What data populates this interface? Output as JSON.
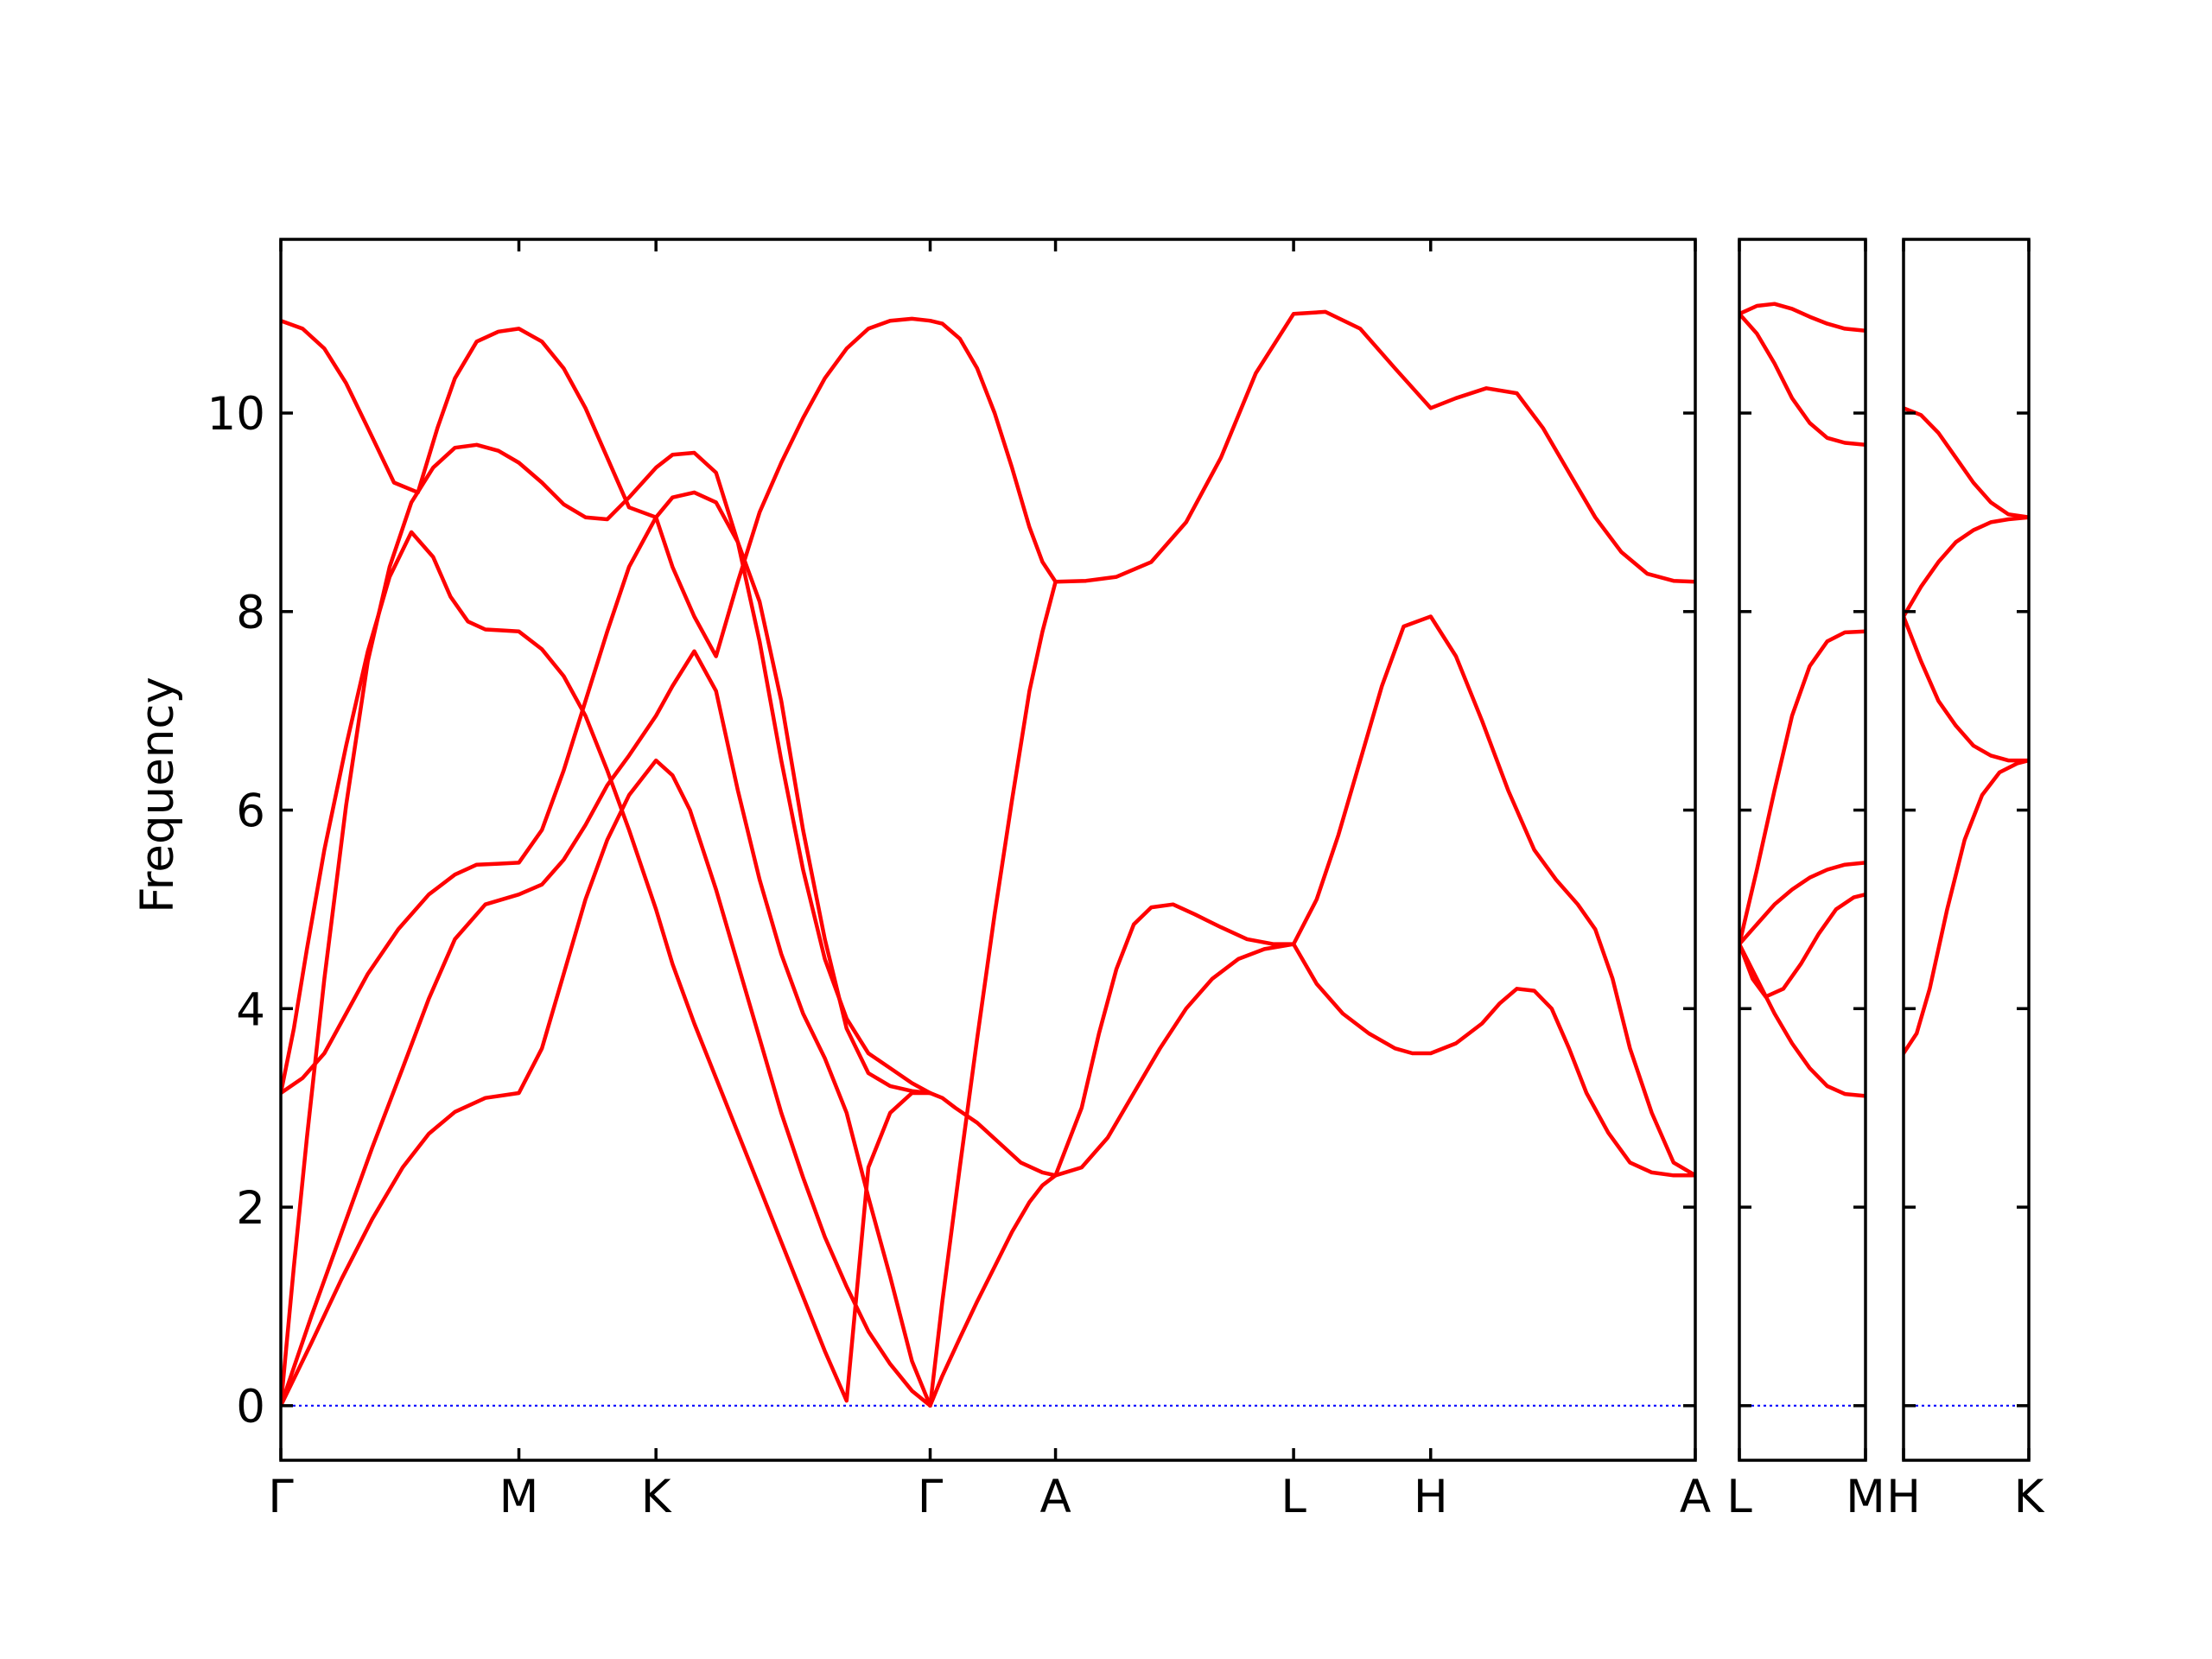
{
  "colors": {
    "band": "#ff0000",
    "zero_line": "#0000ff",
    "axes": "#000000",
    "background": "#ffffff"
  },
  "chart_data": {
    "type": "line",
    "title": "",
    "ylabel": "Frequency",
    "xlabel": "",
    "ylim": [
      -0.55,
      11.75
    ],
    "yticks": [
      0,
      2,
      4,
      6,
      8,
      10
    ],
    "ytick_labels": [
      "0",
      "2",
      "4",
      "6",
      "8",
      "10"
    ],
    "grid": false,
    "legend": "none",
    "panels": [
      {
        "name": "panel-1",
        "xlim": [
          0,
          3.25
        ],
        "ticks": [
          {
            "x": 0.0,
            "label": "Γ"
          },
          {
            "x": 0.547,
            "label": "M"
          },
          {
            "x": 0.862,
            "label": "K"
          },
          {
            "x": 1.492,
            "label": "Γ"
          },
          {
            "x": 1.78,
            "label": "A"
          },
          {
            "x": 2.327,
            "label": "L"
          },
          {
            "x": 2.642,
            "label": "H"
          },
          {
            "x": 3.25,
            "label": "A"
          }
        ],
        "bands": [
          {
            "x": [
              0,
              0.07,
              0.14,
              0.21,
              0.28,
              0.34,
              0.4,
              0.47,
              0.547,
              0.6,
              0.65,
              0.7,
              0.75,
              0.8,
              0.862,
              0.9,
              0.94,
              1.0,
              1.05,
              1.1,
              1.15,
              1.2,
              1.25,
              1.3,
              1.35,
              1.4,
              1.45,
              1.492
            ],
            "y": [
              0,
              0.63,
              1.28,
              1.88,
              2.4,
              2.74,
              2.96,
              3.1,
              3.15,
              3.6,
              4.35,
              5.1,
              5.7,
              6.15,
              6.5,
              6.35,
              6.0,
              5.2,
              4.45,
              3.7,
              2.95,
              2.3,
              1.7,
              1.2,
              0.75,
              0.42,
              0.15,
              0
            ]
          },
          {
            "x": [
              0,
              0.07,
              0.14,
              0.21,
              0.28,
              0.34,
              0.4,
              0.47,
              0.547,
              0.6,
              0.65,
              0.7,
              0.75,
              0.8,
              0.862,
              0.9,
              0.95,
              1.0,
              1.05,
              1.1,
              1.15,
              1.2,
              1.25,
              1.3,
              1.35,
              1.4,
              1.45,
              1.492
            ],
            "y": [
              0,
              0.9,
              1.75,
              2.6,
              3.4,
              4.1,
              4.7,
              5.05,
              5.15,
              5.25,
              5.5,
              5.85,
              6.25,
              6.55,
              6.95,
              7.25,
              7.6,
              7.2,
              6.2,
              5.3,
              4.55,
              3.95,
              3.5,
              2.95,
              2.1,
              1.3,
              0.45,
              0
            ]
          },
          {
            "x": [
              0,
              0.05,
              0.1,
              0.15,
              0.2,
              0.27,
              0.34,
              0.4,
              0.45,
              0.5,
              0.547,
              0.6,
              0.65,
              0.7,
              0.75,
              0.8,
              0.862,
              0.9,
              0.95,
              1.0,
              1.05,
              1.1,
              1.15,
              1.2,
              1.25,
              1.3,
              1.35,
              1.4,
              1.45,
              1.492
            ],
            "y": [
              3.15,
              3.3,
              3.55,
              3.95,
              4.35,
              4.8,
              5.15,
              5.35,
              5.45,
              5.46,
              5.47,
              5.8,
              6.4,
              7.1,
              7.8,
              8.45,
              8.95,
              9.15,
              9.2,
              9.1,
              8.7,
              8.1,
              7.1,
              5.8,
              4.7,
              3.8,
              3.35,
              3.22,
              3.17,
              3.15
            ]
          },
          {
            "x": [
              0,
              0.03,
              0.06,
              0.1,
              0.15,
              0.2,
              0.25,
              0.3,
              0.35,
              0.39,
              0.43,
              0.47,
              0.51,
              0.547,
              0.6,
              0.65,
              0.7,
              0.75,
              0.8,
              0.862,
              0.9,
              0.95,
              1.0,
              1.05,
              1.1,
              1.15,
              1.2,
              1.25,
              1.3,
              1.35,
              1.4,
              1.45,
              1.492
            ],
            "y": [
              3.15,
              3.8,
              4.6,
              5.6,
              6.65,
              7.6,
              8.35,
              8.8,
              8.55,
              8.15,
              7.9,
              7.82,
              7.81,
              7.8,
              7.62,
              7.35,
              6.95,
              6.4,
              5.8,
              5.0,
              4.45,
              3.85,
              3.3,
              2.75,
              2.2,
              1.65,
              1.1,
              0.55,
              0.05,
              2.4,
              2.95,
              3.15,
              3.15
            ]
          },
          {
            "x": [
              0,
              0.03,
              0.06,
              0.1,
              0.15,
              0.2,
              0.25,
              0.3,
              0.35,
              0.4,
              0.45,
              0.5,
              0.547,
              0.6,
              0.65,
              0.7,
              0.75,
              0.8,
              0.862,
              0.9,
              0.95,
              1.0,
              1.05,
              1.1,
              1.15,
              1.2,
              1.25,
              1.3,
              1.35,
              1.4,
              1.45,
              1.492
            ],
            "y": [
              0,
              1.4,
              2.7,
              4.3,
              6.05,
              7.5,
              8.45,
              9.1,
              9.45,
              9.65,
              9.68,
              9.62,
              9.5,
              9.3,
              9.08,
              8.95,
              8.93,
              9.15,
              9.45,
              9.58,
              9.6,
              9.4,
              8.7,
              7.7,
              6.5,
              5.4,
              4.5,
              3.9,
              3.55,
              3.4,
              3.25,
              3.15
            ]
          },
          {
            "x": [
              0,
              0.05,
              0.1,
              0.15,
              0.2,
              0.26,
              0.315,
              0.36,
              0.4,
              0.45,
              0.5,
              0.547,
              0.6,
              0.65,
              0.7,
              0.75,
              0.8,
              0.862,
              0.9,
              0.95,
              1.0,
              1.05,
              1.1,
              1.15,
              1.2,
              1.25,
              1.3,
              1.35,
              1.4,
              1.45,
              1.492
            ],
            "y": [
              10.93,
              10.85,
              10.65,
              10.3,
              9.85,
              9.3,
              9.2,
              9.85,
              10.35,
              10.72,
              10.82,
              10.85,
              10.72,
              10.45,
              10.05,
              9.55,
              9.05,
              8.95,
              8.45,
              7.95,
              7.55,
              8.3,
              9.0,
              9.5,
              9.95,
              10.35,
              10.65,
              10.85,
              10.93,
              10.95,
              10.93
            ]
          },
          {
            "x": [
              1.492,
              1.52,
              1.55,
              1.6,
              1.65,
              1.7,
              1.75,
              1.78
            ],
            "y": [
              3.15,
              3.1,
              3.0,
              2.85,
              2.65,
              2.45,
              2.35,
              2.32
            ]
          },
          {
            "x": [
              1.492,
              1.52,
              1.56,
              1.6,
              1.64,
              1.68,
              1.72,
              1.75,
              1.78
            ],
            "y": [
              0,
              0.3,
              0.68,
              1.05,
              1.4,
              1.75,
              2.05,
              2.22,
              2.32
            ]
          },
          {
            "x": [
              1.492,
              1.52,
              1.56,
              1.6,
              1.64,
              1.68,
              1.72,
              1.75,
              1.78
            ],
            "y": [
              0,
              1.05,
              2.4,
              3.7,
              4.95,
              6.1,
              7.2,
              7.8,
              8.3
            ]
          },
          {
            "x": [
              1.492,
              1.52,
              1.56,
              1.6,
              1.64,
              1.68,
              1.72,
              1.75,
              1.78
            ],
            "y": [
              10.93,
              10.9,
              10.75,
              10.45,
              10.0,
              9.45,
              8.85,
              8.5,
              8.3
            ]
          },
          {
            "x": [
              1.78,
              1.85,
              1.92,
              2.0,
              2.08,
              2.16,
              2.24,
              2.327,
              2.4,
              2.48,
              2.56,
              2.642,
              2.7,
              2.77,
              2.84,
              2.9,
              2.96,
              3.02,
              3.08,
              3.14,
              3.2,
              3.25
            ],
            "y": [
              8.3,
              8.31,
              8.35,
              8.5,
              8.9,
              9.55,
              10.4,
              11.0,
              11.02,
              10.85,
              10.45,
              10.05,
              10.15,
              10.25,
              10.2,
              9.85,
              9.4,
              8.95,
              8.6,
              8.38,
              8.31,
              8.3
            ]
          },
          {
            "x": [
              1.78,
              1.84,
              1.88,
              1.92,
              1.96,
              2.0,
              2.05,
              2.1,
              2.16,
              2.22,
              2.28,
              2.327,
              2.38,
              2.43,
              2.48,
              2.53,
              2.58,
              2.642,
              2.7,
              2.76,
              2.82,
              2.88,
              2.93,
              2.98,
              3.02,
              3.06,
              3.1,
              3.15,
              3.2,
              3.25
            ],
            "y": [
              2.32,
              3.0,
              3.75,
              4.4,
              4.85,
              5.02,
              5.05,
              4.95,
              4.82,
              4.7,
              4.65,
              4.65,
              5.1,
              5.75,
              6.5,
              7.25,
              7.85,
              7.95,
              7.55,
              6.9,
              6.2,
              5.6,
              5.3,
              5.05,
              4.8,
              4.3,
              3.6,
              2.95,
              2.45,
              2.32
            ]
          },
          {
            "x": [
              1.78,
              1.84,
              1.9,
              1.96,
              2.02,
              2.08,
              2.14,
              2.2,
              2.26,
              2.327,
              2.38,
              2.44,
              2.5,
              2.56,
              2.6,
              2.642,
              2.7,
              2.76,
              2.8,
              2.84,
              2.88,
              2.92,
              2.96,
              3.0,
              3.05,
              3.1,
              3.15,
              3.2,
              3.25
            ],
            "y": [
              2.32,
              2.4,
              2.7,
              3.15,
              3.6,
              4.0,
              4.3,
              4.5,
              4.6,
              4.65,
              4.25,
              3.95,
              3.75,
              3.6,
              3.55,
              3.55,
              3.65,
              3.85,
              4.05,
              4.2,
              4.18,
              4.0,
              3.6,
              3.15,
              2.75,
              2.45,
              2.35,
              2.32,
              2.32
            ]
          }
        ]
      },
      {
        "name": "panel-2",
        "xlim": [
          0,
          0.287
        ],
        "ticks": [
          {
            "x": 0.0,
            "label": "L"
          },
          {
            "x": 0.287,
            "label": "M"
          }
        ],
        "bands": [
          {
            "x": [
              0,
              0.04,
              0.08,
              0.12,
              0.16,
              0.2,
              0.24,
              0.287
            ],
            "y": [
              4.65,
              4.3,
              3.95,
              3.65,
              3.4,
              3.22,
              3.14,
              3.12
            ]
          },
          {
            "x": [
              0,
              0.03,
              0.06,
              0.1,
              0.14,
              0.18,
              0.22,
              0.26,
              0.287
            ],
            "y": [
              4.65,
              4.3,
              4.12,
              4.2,
              4.45,
              4.75,
              5.0,
              5.12,
              5.15
            ]
          },
          {
            "x": [
              0,
              0.04,
              0.08,
              0.12,
              0.16,
              0.2,
              0.24,
              0.287
            ],
            "y": [
              4.65,
              4.85,
              5.05,
              5.2,
              5.32,
              5.4,
              5.45,
              5.47
            ]
          },
          {
            "x": [
              0,
              0.04,
              0.08,
              0.12,
              0.16,
              0.2,
              0.24,
              0.287
            ],
            "y": [
              4.65,
              5.4,
              6.2,
              6.95,
              7.45,
              7.7,
              7.79,
              7.8
            ]
          },
          {
            "x": [
              0,
              0.04,
              0.08,
              0.12,
              0.16,
              0.2,
              0.24,
              0.287
            ],
            "y": [
              11.0,
              10.8,
              10.5,
              10.15,
              9.9,
              9.75,
              9.7,
              9.68
            ]
          },
          {
            "x": [
              0,
              0.04,
              0.08,
              0.12,
              0.16,
              0.2,
              0.24,
              0.287
            ],
            "y": [
              11.0,
              11.08,
              11.1,
              11.05,
              10.97,
              10.9,
              10.85,
              10.83
            ]
          }
        ]
      },
      {
        "name": "panel-3",
        "xlim": [
          0,
          0.287
        ],
        "ticks": [
          {
            "x": 0.0,
            "label": "H"
          },
          {
            "x": 0.287,
            "label": "K"
          }
        ],
        "bands": [
          {
            "x": [
              0,
              0.03,
              0.06,
              0.1,
              0.14,
              0.18,
              0.22,
              0.26,
              0.287
            ],
            "y": [
              3.55,
              3.75,
              4.2,
              5.0,
              5.7,
              6.15,
              6.38,
              6.47,
              6.5
            ]
          },
          {
            "x": [
              0,
              0.04,
              0.08,
              0.12,
              0.16,
              0.2,
              0.24,
              0.287
            ],
            "y": [
              7.95,
              7.5,
              7.1,
              6.85,
              6.65,
              6.55,
              6.5,
              6.5
            ]
          },
          {
            "x": [
              0,
              0.04,
              0.08,
              0.12,
              0.16,
              0.2,
              0.24,
              0.287
            ],
            "y": [
              7.95,
              8.25,
              8.5,
              8.7,
              8.82,
              8.9,
              8.93,
              8.95
            ]
          },
          {
            "x": [
              0,
              0.04,
              0.08,
              0.12,
              0.16,
              0.2,
              0.24,
              0.287
            ],
            "y": [
              10.05,
              9.98,
              9.8,
              9.55,
              9.3,
              9.1,
              8.98,
              8.95
            ]
          }
        ]
      }
    ]
  }
}
